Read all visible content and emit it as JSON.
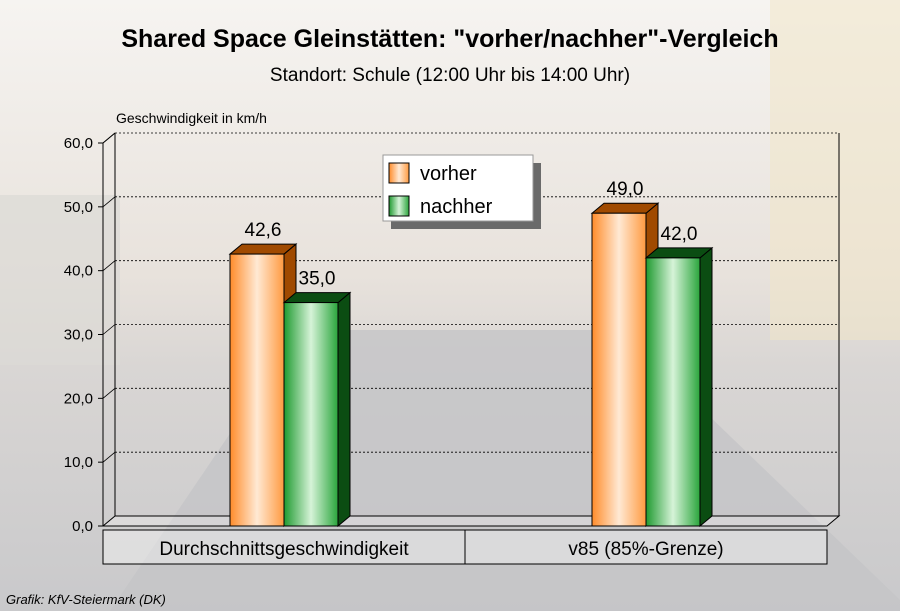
{
  "chart_data": {
    "type": "bar",
    "title": "Shared Space Gleinstätten: \"vorher/nachher\"-Vergleich",
    "subtitle": "Standort: Schule (12:00 Uhr bis 14:00 Uhr)",
    "ylabel": "Geschwindigkeit in km/h",
    "xlabel": "",
    "categories": [
      "Durchschnittsgeschwindigkeit",
      "v85 (85%-Grenze)"
    ],
    "series": [
      {
        "name": "vorher",
        "values": [
          42.6,
          49.0
        ],
        "labels": [
          "42,6",
          "49,0"
        ],
        "color": "#ff8c2a",
        "side_color": "#a04a00"
      },
      {
        "name": "nachher",
        "values": [
          35.0,
          42.0
        ],
        "labels": [
          "35,0",
          "42,0"
        ],
        "color": "#1f9a30",
        "side_color": "#0b4d12"
      }
    ],
    "ylim": [
      0,
      60
    ],
    "yticks": [
      0,
      10,
      20,
      30,
      40,
      50,
      60
    ],
    "ytick_labels": [
      "0,0",
      "10,0",
      "20,0",
      "30,0",
      "40,0",
      "50,0",
      "60,0"
    ],
    "grid": true,
    "legend_position": "top-center",
    "source": "Grafik: KfV-Steiermark (DK)"
  }
}
